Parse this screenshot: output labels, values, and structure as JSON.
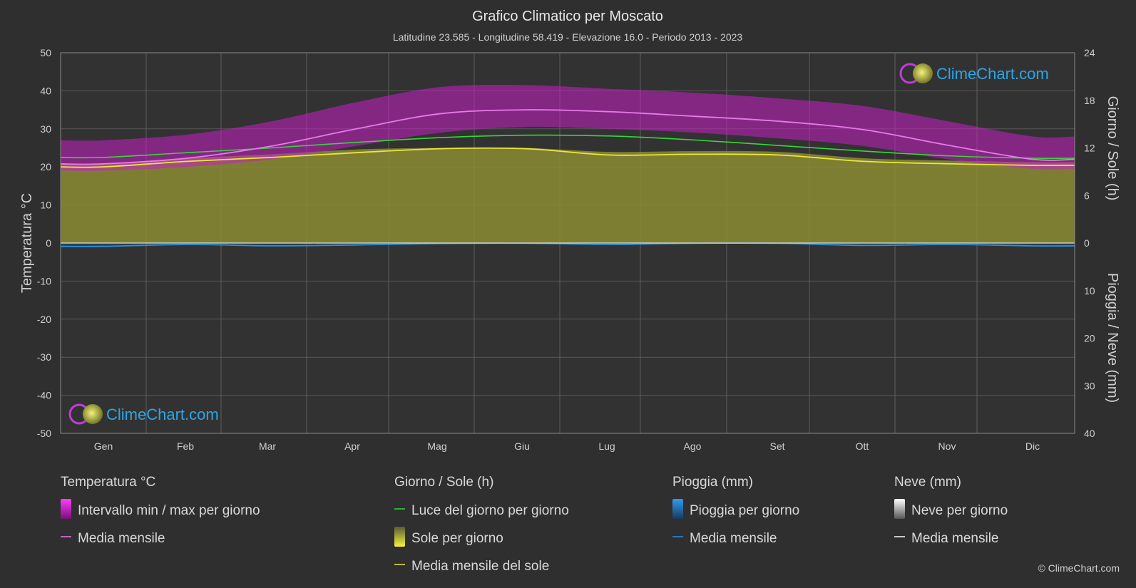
{
  "chart_data": {
    "type": "area",
    "title": "Grafico Climatico per Moscato",
    "subtitle": "Latitudine 23.585 - Longitudine 58.419 - Elevazione 16.0 - Periodo 2013 - 2023",
    "months": [
      "Gen",
      "Feb",
      "Mar",
      "Apr",
      "Mag",
      "Giu",
      "Lug",
      "Ago",
      "Set",
      "Ott",
      "Nov",
      "Dic"
    ],
    "left_axis": {
      "label": "Temperatura °C",
      "ylim": [
        -50,
        50
      ],
      "ticks": [
        "50",
        "40",
        "30",
        "20",
        "10",
        "0",
        "-10",
        "-20",
        "-30",
        "-40",
        "-50"
      ]
    },
    "right_axis_top": {
      "label": "Giorno / Sole (h)",
      "ylim": [
        0,
        24
      ],
      "ticks": [
        "24",
        "18",
        "12",
        "6",
        "0"
      ]
    },
    "right_axis_bottom": {
      "label": "Pioggia / Neve (mm)",
      "ylim": [
        0,
        40
      ],
      "ticks": [
        "10",
        "20",
        "30",
        "40"
      ]
    },
    "series": [
      {
        "name": "Media mensile",
        "group": "Temperatura °C",
        "axis": "temperature",
        "color": "#e879e8",
        "values": [
          20.8,
          22.3,
          25.5,
          30.0,
          34.0,
          35.0,
          34.5,
          33.3,
          32.0,
          29.8,
          25.7,
          22.0
        ]
      },
      {
        "name": "Intervallo min / max per giorno",
        "group": "Temperatura °C",
        "axis": "temperature",
        "color": "#d21ad2",
        "min": [
          19.0,
          20.0,
          22.0,
          25.5,
          29.0,
          30.5,
          30.0,
          29.0,
          27.5,
          25.5,
          22.0,
          19.5
        ],
        "max": [
          27.0,
          28.5,
          32.0,
          37.0,
          41.0,
          41.5,
          40.5,
          39.5,
          38.0,
          36.0,
          32.0,
          28.0
        ]
      },
      {
        "name": "Luce del giorno per giorno",
        "group": "Giorno / Sole (h)",
        "axis": "daylight",
        "color": "#3ad43a",
        "values": [
          10.8,
          11.4,
          12.0,
          12.7,
          13.3,
          13.6,
          13.5,
          13.0,
          12.3,
          11.6,
          11.0,
          10.7
        ]
      },
      {
        "name": "Media mensile del sole",
        "group": "Giorno / Sole (h)",
        "axis": "sunshine",
        "color": "#e8e83a",
        "values": [
          9.6,
          10.3,
          10.8,
          11.4,
          11.9,
          11.9,
          11.1,
          11.2,
          11.1,
          10.3,
          10.0,
          9.8
        ]
      },
      {
        "name": "Media mensile",
        "group": "Pioggia (mm)",
        "axis": "rain",
        "color": "#2d8fdc",
        "values": [
          0.7,
          0.3,
          0.6,
          0.4,
          0.1,
          0.05,
          0.3,
          0.05,
          0.05,
          0.5,
          0.3,
          0.6
        ]
      },
      {
        "name": "Media mensile",
        "group": "Neve (mm)",
        "axis": "snow",
        "color": "#ffffff",
        "values": [
          0,
          0,
          0,
          0,
          0,
          0,
          0,
          0,
          0,
          0,
          0,
          0
        ]
      }
    ],
    "grid": true,
    "legend_position": "bottom",
    "legend": [
      {
        "heading": "Temperatura °C",
        "items": [
          {
            "label": "Intervallo min / max per giorno",
            "kind": "swatch-magenta"
          },
          {
            "label": "Media mensile",
            "kind": "line",
            "color": "#e879e8"
          }
        ]
      },
      {
        "heading": "Giorno / Sole (h)",
        "items": [
          {
            "label": "Luce del giorno per giorno",
            "kind": "line",
            "color": "#3ad43a"
          },
          {
            "label": "Sole per giorno",
            "kind": "swatch-yellow"
          },
          {
            "label": "Media mensile del sole",
            "kind": "line",
            "color": "#e8e83a"
          }
        ]
      },
      {
        "heading": "Pioggia (mm)",
        "items": [
          {
            "label": "Pioggia per giorno",
            "kind": "swatch-blue"
          },
          {
            "label": "Media mensile",
            "kind": "line",
            "color": "#2d8fdc"
          }
        ]
      },
      {
        "heading": "Neve (mm)",
        "items": [
          {
            "label": "Neve per giorno",
            "kind": "swatch-white"
          },
          {
            "label": "Media mensile",
            "kind": "line",
            "color": "#ffffff"
          }
        ]
      }
    ]
  },
  "branding": {
    "logo_text": "ClimeChart.com",
    "copyright": "© ClimeChart.com"
  }
}
